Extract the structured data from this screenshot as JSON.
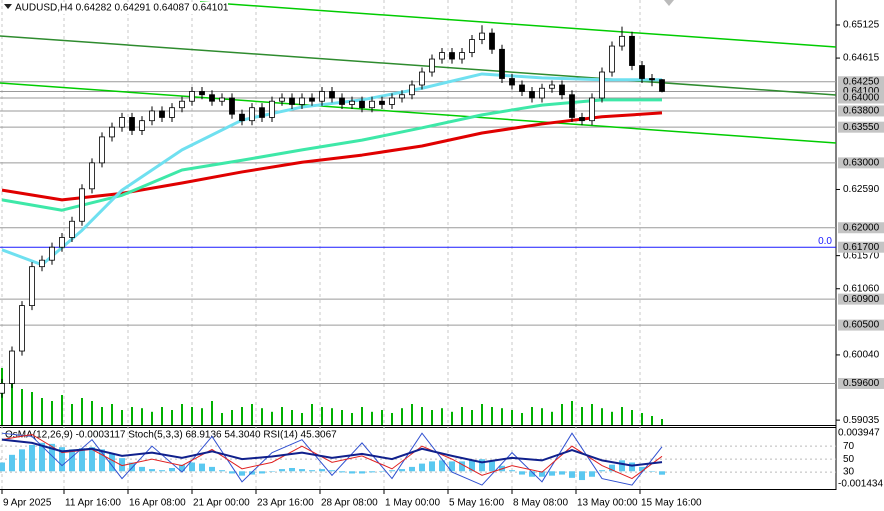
{
  "header": "AUDUSD,H4  0.64282 0.64291 0.64087 0.64101",
  "chart_data": [
    {
      "type": "candlestick",
      "xlim": [
        -0.2,
        83.4
      ],
      "xticks": [
        {
          "value": 0,
          "label": "9 Apr 2025"
        },
        {
          "value": 6.2,
          "label": "11 Apr 16:00"
        },
        {
          "value": 12.6,
          "label": "16 Apr 08:00"
        },
        {
          "value": 19,
          "label": "21 Apr 00:00"
        },
        {
          "value": 25.4,
          "label": "23 Apr 16:00"
        },
        {
          "value": 31.8,
          "label": "28 Apr 08:00"
        },
        {
          "value": 38.2,
          "label": "1 May 00:00"
        },
        {
          "value": 44.6,
          "label": "5 May 16:00"
        },
        {
          "value": 51,
          "label": "8 May 08:00"
        },
        {
          "value": 57.4,
          "label": "13 May 00:00"
        },
        {
          "value": 63.8,
          "label": "15 May 16:00"
        }
      ],
      "ylim": [
        0.5896,
        0.6551
      ],
      "yticks": [
        0.65125,
        0.64615,
        {
          "value": 0.6259,
          "label": "0.62590"
        },
        {
          "value": 0.6157,
          "label": "0.61570"
        },
        {
          "value": 0.6106,
          "label": "0.61060"
        },
        {
          "value": 0.6004,
          "label": "0.60040"
        },
        0.59035
      ],
      "open": [
        0.5945,
        0.596,
        0.601,
        0.608,
        0.614,
        0.615,
        0.617,
        0.6185,
        0.621,
        0.626,
        0.63,
        0.634,
        0.6355,
        0.637,
        0.635,
        0.6365,
        0.638,
        0.637,
        0.6385,
        0.6395,
        0.641,
        0.6405,
        0.6395,
        0.64,
        0.6375,
        0.6365,
        0.6385,
        0.637,
        0.6395,
        0.64,
        0.639,
        0.64,
        0.6395,
        0.641,
        0.64,
        0.639,
        0.6395,
        0.6385,
        0.6395,
        0.639,
        0.64,
        0.6405,
        0.642,
        0.644,
        0.646,
        0.647,
        0.646,
        0.647,
        0.649,
        0.65,
        0.6475,
        0.643,
        0.642,
        0.641,
        0.64,
        0.6415,
        0.642,
        0.6405,
        0.637,
        0.6365,
        0.64,
        0.644,
        0.648,
        0.6495,
        0.645,
        0.643,
        0.64282
      ],
      "high": [
        0.5967,
        0.6017,
        0.6087,
        0.6147,
        0.6157,
        0.6177,
        0.6192,
        0.6217,
        0.6267,
        0.6307,
        0.6347,
        0.6362,
        0.6377,
        0.6377,
        0.6372,
        0.6387,
        0.6387,
        0.6392,
        0.6402,
        0.6417,
        0.6417,
        0.6412,
        0.6407,
        0.6407,
        0.6382,
        0.6392,
        0.6392,
        0.6402,
        0.6407,
        0.6407,
        0.6407,
        0.6407,
        0.6417,
        0.6417,
        0.6407,
        0.6402,
        0.6402,
        0.6402,
        0.6402,
        0.6407,
        0.6412,
        0.6427,
        0.6447,
        0.6467,
        0.6477,
        0.6477,
        0.6477,
        0.6497,
        0.6512,
        0.6507,
        0.6482,
        0.6437,
        0.6427,
        0.6417,
        0.6422,
        0.6427,
        0.6427,
        0.6412,
        0.6377,
        0.6407,
        0.6447,
        0.6487,
        0.651,
        0.6502,
        0.6457,
        0.6437,
        0.64291
      ],
      "low": [
        0.5938,
        0.5953,
        0.6003,
        0.6073,
        0.6133,
        0.6143,
        0.6163,
        0.6178,
        0.6203,
        0.6253,
        0.6293,
        0.6333,
        0.6348,
        0.6343,
        0.6343,
        0.6358,
        0.6363,
        0.6363,
        0.6378,
        0.6388,
        0.6398,
        0.6388,
        0.6388,
        0.6368,
        0.6358,
        0.6358,
        0.6363,
        0.6363,
        0.6388,
        0.6383,
        0.6383,
        0.6388,
        0.6388,
        0.6393,
        0.6383,
        0.6383,
        0.6378,
        0.6378,
        0.6383,
        0.6383,
        0.6393,
        0.6398,
        0.6413,
        0.6433,
        0.6453,
        0.6453,
        0.6453,
        0.6463,
        0.6483,
        0.6468,
        0.6423,
        0.6413,
        0.6403,
        0.6393,
        0.6393,
        0.6408,
        0.6398,
        0.6363,
        0.6358,
        0.6358,
        0.6393,
        0.6433,
        0.6473,
        0.6443,
        0.6423,
        0.6418,
        0.64087
      ],
      "close": [
        0.596,
        0.601,
        0.608,
        0.614,
        0.615,
        0.617,
        0.6185,
        0.621,
        0.626,
        0.63,
        0.634,
        0.6355,
        0.637,
        0.635,
        0.6365,
        0.638,
        0.637,
        0.6385,
        0.6395,
        0.641,
        0.6405,
        0.6395,
        0.64,
        0.6375,
        0.6365,
        0.6385,
        0.637,
        0.6395,
        0.64,
        0.639,
        0.64,
        0.6395,
        0.641,
        0.64,
        0.639,
        0.6395,
        0.6385,
        0.6395,
        0.639,
        0.64,
        0.6405,
        0.642,
        0.644,
        0.646,
        0.647,
        0.646,
        0.647,
        0.649,
        0.65,
        0.6475,
        0.643,
        0.642,
        0.641,
        0.64,
        0.6415,
        0.642,
        0.6405,
        0.637,
        0.6365,
        0.64,
        0.644,
        0.648,
        0.6495,
        0.645,
        0.643,
        0.6428,
        0.64101
      ],
      "volume": [
        95,
        70,
        60,
        55,
        45,
        40,
        50,
        35,
        45,
        40,
        30,
        35,
        25,
        30,
        28,
        22,
        30,
        25,
        35,
        30,
        28,
        40,
        20,
        25,
        30,
        35,
        28,
        22,
        30,
        25,
        20,
        35,
        30,
        28,
        25,
        20,
        30,
        22,
        25,
        20,
        28,
        35,
        30,
        25,
        28,
        22,
        30,
        25,
        35,
        30,
        28,
        25,
        20,
        30,
        28,
        22,
        35,
        40,
        30,
        35,
        28,
        22,
        30,
        25,
        20,
        15,
        10
      ],
      "volume_ylim": [
        0,
        100
      ],
      "volume_color": "#00b000",
      "lines": [
        {
          "color": "#e00000",
          "x": [
            0,
            6,
            12,
            18,
            24,
            30,
            36,
            42,
            48,
            54,
            60,
            66
          ],
          "values": [
            0.6258,
            0.6243,
            0.6253,
            0.6269,
            0.6286,
            0.6301,
            0.6312,
            0.6326,
            0.6346,
            0.636,
            0.6371,
            0.6377
          ]
        },
        {
          "color": "#3ee8a8",
          "x": [
            0,
            6,
            12,
            18,
            24,
            30,
            36,
            42,
            48,
            54,
            60,
            66
          ],
          "values": [
            0.6243,
            0.6227,
            0.625,
            0.6289,
            0.6304,
            0.632,
            0.6335,
            0.6354,
            0.6374,
            0.6389,
            0.6397,
            0.6397
          ]
        },
        {
          "color": "#6fe0f0",
          "x": [
            0,
            4,
            8,
            12,
            18,
            24,
            30,
            36,
            42,
            48,
            54,
            60,
            66
          ],
          "values": [
            0.6166,
            0.6143,
            0.6196,
            0.6258,
            0.632,
            0.6366,
            0.6386,
            0.6397,
            0.6415,
            0.6437,
            0.6431,
            0.6428,
            0.6428
          ]
        }
      ],
      "trendlines": [
        {
          "color": "#00cc00",
          "x": [
            19.8,
            83.4
          ],
          "values": [
            0.6548,
            0.64786
          ]
        },
        {
          "color": "#2e8b2e",
          "x": [
            -0.2,
            83.4
          ],
          "values": [
            0.64955,
            0.64046
          ]
        },
        {
          "color": "#00cc00",
          "x": [
            -0.2,
            83.4
          ],
          "values": [
            0.64231,
            0.63306
          ]
        }
      ],
      "levels": [
        {
          "value": 0.6425,
          "label": "0.64250",
          "color": "#9a9a9a"
        },
        {
          "value": 0.641,
          "label": "0.64100",
          "color": "#9a9a9a"
        },
        {
          "value": 0.64,
          "label": "0.64000",
          "color": "#9a9a9a"
        },
        {
          "value": 0.638,
          "label": "0.63800",
          "color": "#9a9a9a"
        },
        {
          "value": 0.6355,
          "label": "0.63550",
          "color": "#9a9a9a"
        },
        {
          "value": 0.63,
          "label": "0.63000",
          "color": "#9a9a9a"
        },
        {
          "value": 0.62,
          "label": "0.62000",
          "color": "#9a9a9a"
        },
        {
          "value": 0.617,
          "label": "0.61700",
          "color": "#1a1aff"
        },
        {
          "value": 0.609,
          "label": "0.60900",
          "color": "#9a9a9a"
        },
        {
          "value": 0.605,
          "label": "0.60500",
          "color": "#9a9a9a"
        },
        {
          "value": 0.596,
          "label": "0.59600",
          "color": "#9a9a9a"
        }
      ],
      "annotation": "0.0"
    },
    {
      "type": "oscillator",
      "title": "OsMA(12,26,9) -0.0003117 Stoch(5,3,3) 68.9136 54.3040 RSI(14) 45.3067",
      "ylim": [
        7,
        98
      ],
      "yticks": [
        70,
        50,
        30
      ],
      "y2lim": [
        -0.001434,
        0.003947
      ],
      "y2ticks": [
        0.003947,
        -0.001434
      ],
      "histogram": {
        "color": "#5ac8f0",
        "axis": "y2",
        "values": [
          0.0008,
          0.0015,
          0.002,
          0.0024,
          0.0026,
          0.0025,
          0.0022,
          0.002,
          0.0021,
          0.0022,
          0.002,
          0.0016,
          0.0012,
          0.0008,
          0.0004,
          0.0002,
          0.0001,
          0.0003,
          0.0006,
          0.0008,
          0.0007,
          0.0004,
          0.0001,
          -0.0002,
          -0.0004,
          -0.0003,
          -0.0002,
          0.0,
          0.0002,
          0.0003,
          0.0002,
          0.0001,
          0.0002,
          0.0001,
          -0.0001,
          -0.0002,
          -0.0002,
          -0.0001,
          0.0,
          0.0001,
          0.0002,
          0.0004,
          0.0007,
          0.0009,
          0.001,
          0.0009,
          0.0009,
          0.001,
          0.0011,
          0.0009,
          0.0005,
          0.0001,
          -0.0003,
          -0.0005,
          -0.0005,
          -0.0004,
          -0.0003,
          -0.0006,
          -0.0008,
          -0.0005,
          0.0001,
          0.0006,
          0.001,
          0.0008,
          0.0004,
          0.0,
          -0.0003117
        ]
      },
      "series": [
        {
          "color": "#3050d0",
          "width": 1,
          "x": [
            0,
            3,
            6,
            9,
            12,
            15,
            18,
            21,
            24,
            27,
            30,
            33,
            36,
            39,
            42,
            45,
            48,
            51,
            54,
            57,
            60,
            63,
            66
          ],
          "values": [
            90,
            85,
            40,
            80,
            20,
            70,
            30,
            85,
            15,
            60,
            80,
            25,
            75,
            20,
            90,
            30,
            10,
            60,
            15,
            90,
            20,
            10,
            68.9136
          ]
        },
        {
          "color": "#e02020",
          "width": 1,
          "x": [
            0,
            3,
            6,
            9,
            12,
            15,
            18,
            21,
            24,
            27,
            30,
            33,
            36,
            39,
            42,
            45,
            48,
            51,
            54,
            57,
            60,
            63,
            66
          ],
          "values": [
            80,
            88,
            60,
            65,
            40,
            50,
            40,
            65,
            35,
            45,
            70,
            45,
            55,
            35,
            70,
            50,
            25,
            40,
            30,
            70,
            40,
            20,
            54.304
          ]
        },
        {
          "color": "#10208c",
          "width": 2,
          "x": [
            0,
            3,
            6,
            9,
            12,
            15,
            18,
            21,
            24,
            27,
            30,
            33,
            36,
            39,
            42,
            45,
            48,
            51,
            54,
            57,
            60,
            63,
            66
          ],
          "values": [
            80,
            75,
            62,
            66,
            55,
            60,
            52,
            62,
            50,
            54,
            60,
            52,
            58,
            50,
            66,
            55,
            45,
            52,
            48,
            64,
            48,
            40,
            45.3067
          ]
        }
      ]
    }
  ]
}
